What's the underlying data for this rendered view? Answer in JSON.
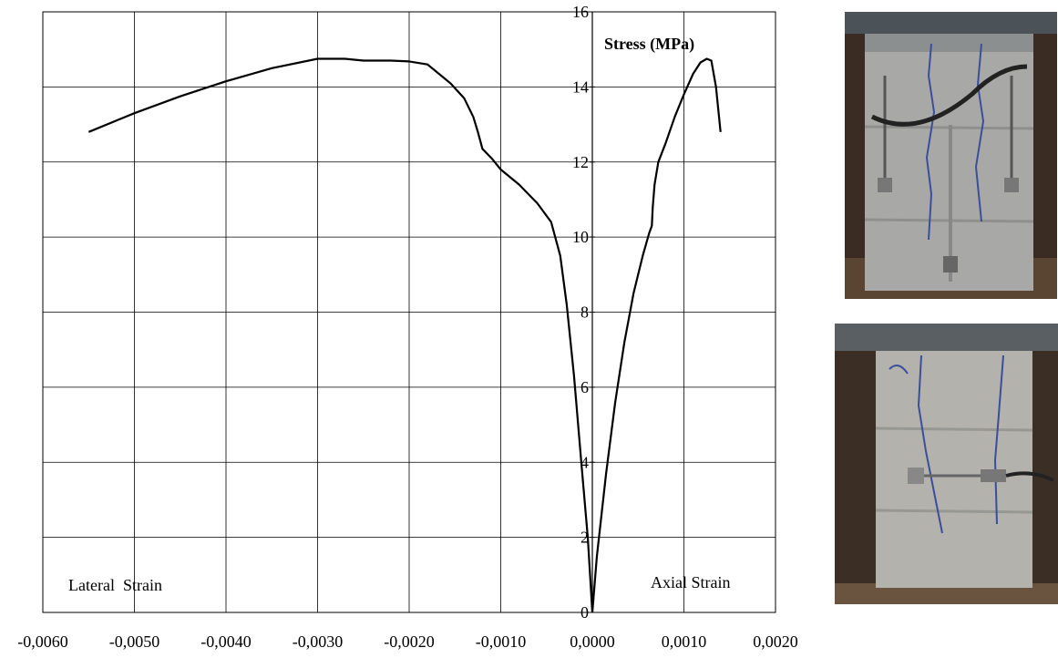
{
  "chart_data": {
    "type": "line",
    "xlim": [
      -0.006,
      0.002
    ],
    "ylim": [
      0,
      16
    ],
    "x_ticks": [
      "-0,0060",
      "-0,0050",
      "-0,0040",
      "-0,0030",
      "-0,0020",
      "-0,0010",
      "0,0000",
      "0,0010",
      "0,0020"
    ],
    "y_ticks": [
      "0",
      "2",
      "4",
      "6",
      "8",
      "10",
      "12",
      "14",
      "16"
    ],
    "ylabel": "Stress (MPa)",
    "annotations": {
      "left": "Lateral  Strain",
      "right": "Axial Strain"
    },
    "grid": true,
    "series": [
      {
        "color": "#000000",
        "x": [
          -0.0055,
          -0.005,
          -0.0045,
          -0.004,
          -0.0035,
          -0.003,
          -0.0027,
          -0.0025,
          -0.0022,
          -0.002,
          -0.0018,
          -0.0017,
          -0.00155,
          -0.0014,
          -0.0013,
          -0.00125,
          -0.0012,
          -0.0011,
          -0.001,
          -0.0008,
          -0.0006,
          -0.00045,
          -0.00035,
          -0.00028,
          -0.0002,
          -0.00012,
          -5e-05,
          0.0
        ],
        "y": [
          12.8,
          13.3,
          13.75,
          14.15,
          14.5,
          14.75,
          14.75,
          14.7,
          14.7,
          14.68,
          14.6,
          14.4,
          14.1,
          13.7,
          13.2,
          12.8,
          12.35,
          12.1,
          11.8,
          11.4,
          10.9,
          10.4,
          9.5,
          8.2,
          6.3,
          4.0,
          2.0,
          0.0
        ]
      },
      {
        "color": "#000000",
        "x": [
          0.0,
          5e-05,
          0.00015,
          0.00025,
          0.00035,
          0.00045,
          0.00055,
          0.00062,
          0.00065,
          0.00066,
          0.00068,
          0.00072,
          0.0008,
          0.0009,
          0.001,
          0.0011,
          0.00118,
          0.00125,
          0.0013,
          0.00135,
          0.0014
        ],
        "y": [
          0.0,
          1.5,
          3.7,
          5.6,
          7.2,
          8.5,
          9.5,
          10.1,
          10.3,
          10.8,
          11.4,
          12.0,
          12.5,
          13.2,
          13.8,
          14.35,
          14.65,
          14.75,
          14.7,
          14.0,
          12.8
        ]
      }
    ]
  }
}
